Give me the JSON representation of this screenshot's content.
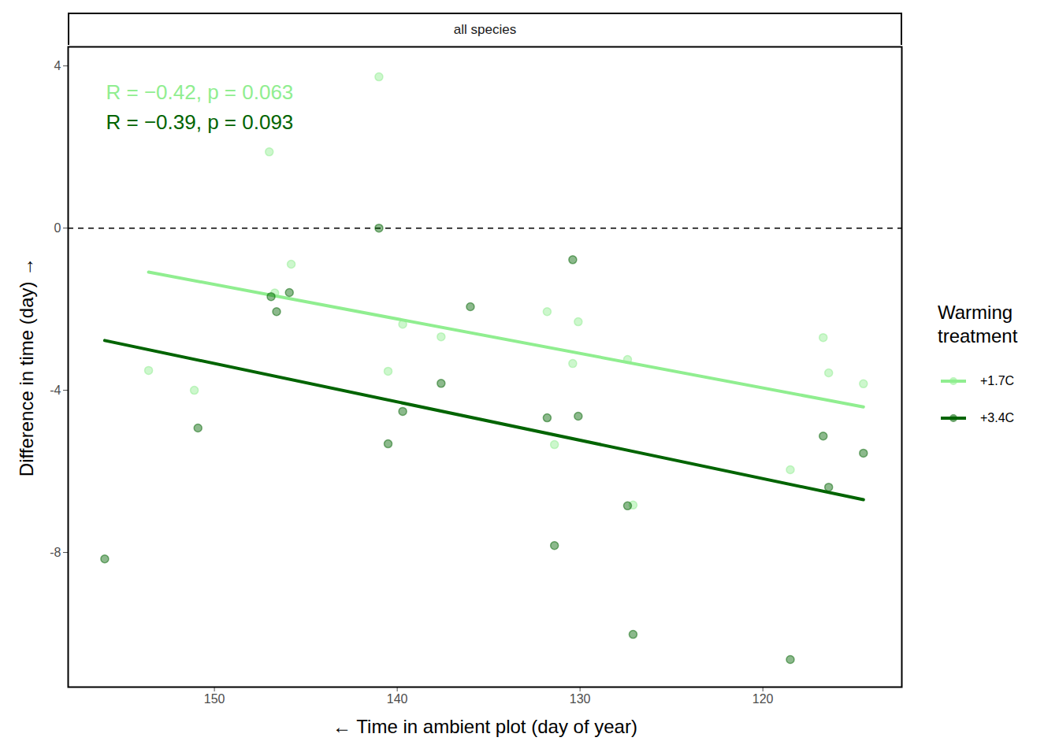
{
  "chart_data": {
    "type": "scatter",
    "facet_label": "all species",
    "x_label": "Time in ambient plot (day of year)",
    "y_label": "Difference in time (day)",
    "xlim": [
      158,
      112.4
    ],
    "xticks": [
      150,
      140,
      130,
      120
    ],
    "ylim": [
      -11.32,
      4.47
    ],
    "yticks": [
      -8,
      -4,
      0,
      4
    ],
    "grid": false,
    "legend": "right",
    "legend_title": "Warming treatment",
    "reference_lines": [
      {
        "y": 0,
        "line_style": "dashed"
      }
    ],
    "series": [
      {
        "name": "+1.7C",
        "color": "#90EE90",
        "marker": "circle",
        "line_style": "solid",
        "annotation": "R = −0.42, p = 0.063",
        "x": [
          141.0,
          147.0,
          145.8,
          153.6,
          151.1,
          146.7,
          139.7,
          140.5,
          137.6,
          131.8,
          130.1,
          130.4,
          131.4,
          127.4,
          127.1,
          118.5,
          116.7,
          116.4,
          114.5
        ],
        "values": [
          3.73,
          1.88,
          -0.89,
          -3.51,
          -4.0,
          -1.6,
          -2.37,
          -3.53,
          -2.68,
          -2.06,
          -2.31,
          -3.34,
          -5.34,
          -3.24,
          -6.83,
          -5.96,
          -2.7,
          -3.57,
          -3.84
        ]
      },
      {
        "name": "+3.4C",
        "color": "#006400",
        "marker": "circle",
        "line_style": "solid",
        "annotation": "R = −0.39, p = 0.093",
        "x": [
          156.0,
          150.9,
          146.9,
          145.9,
          146.6,
          141.0,
          136.0,
          139.7,
          140.5,
          137.6,
          130.4,
          131.8,
          130.1,
          131.4,
          127.4,
          127.1,
          118.5,
          116.7,
          116.4,
          114.5
        ],
        "values": [
          -8.16,
          -4.93,
          -1.69,
          -1.59,
          -2.06,
          0,
          -1.94,
          -4.52,
          -5.32,
          -3.83,
          -0.78,
          -4.68,
          -4.64,
          -7.83,
          -6.85,
          -10.02,
          -10.64,
          -5.13,
          -6.39,
          -5.55
        ]
      }
    ]
  }
}
